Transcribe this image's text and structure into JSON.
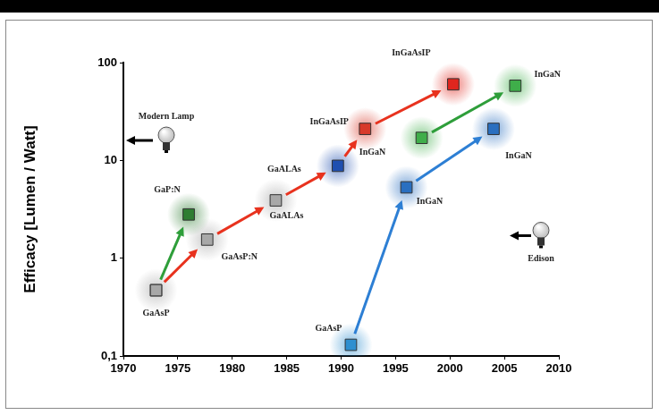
{
  "chart_data": {
    "type": "scatter",
    "ylabel": "Efficacy [Lumen / Watt]",
    "log": "y",
    "grid": false,
    "xlim": [
      1970,
      2010
    ],
    "xticks": [
      1970,
      1975,
      1980,
      1985,
      1990,
      1995,
      2000,
      2005,
      2010
    ],
    "ylim": [
      0.1,
      100
    ],
    "yticks": [
      {
        "value": 0.1,
        "label": "0,1"
      },
      1,
      10,
      100
    ],
    "series": [
      {
        "color": "#e8321e",
        "marker": "square",
        "line_style": "arrow",
        "x": [
          1973,
          1977.7,
          1984,
          1989.7,
          1992.2,
          2000.3
        ],
        "values": [
          0.47,
          1.55,
          3.9,
          8.8,
          21,
          60
        ],
        "labels": [
          "GaAsP",
          "GaAsP:N",
          "GaALAs",
          "GaALAs",
          "InGaAsIP",
          "InGaAsIP"
        ],
        "colors": [
          "#a8a8a8",
          "#a8a8a8",
          "#a8a8a8",
          "#1f4fb0",
          "#d83a2a",
          "#e0261e"
        ]
      },
      {
        "color": "#2e9e3a",
        "marker": "square",
        "line_style": "arrow",
        "x": [
          1973,
          1976
        ],
        "values": [
          0.47,
          2.8
        ],
        "labels": [
          null,
          "GaP:N"
        ],
        "colors": [
          "#a8a8a8",
          "#2e7d32"
        ]
      },
      {
        "color": "#2e9e3a",
        "marker": "square",
        "line_style": "arrow",
        "x": [
          1997.4,
          2006
        ],
        "values": [
          17,
          58
        ],
        "labels": [
          "InGaN",
          "InGaN"
        ],
        "colors": [
          "#3fae4a",
          "#3fae4a"
        ]
      },
      {
        "color": "#2d7fd4",
        "marker": "square",
        "line_style": "arrow",
        "x": [
          1990.9,
          1996,
          2004
        ],
        "values": [
          0.13,
          5.3,
          21
        ],
        "labels": [
          "GaAsP",
          "InGaN",
          "InGaN"
        ],
        "colors": [
          "#2e8fd0",
          "#2a6fc0",
          "#2a6fc0"
        ]
      }
    ],
    "references": [
      {
        "label": "Modern Lamp",
        "value": 16
      },
      {
        "label": "Edison",
        "value": 1.7
      }
    ]
  }
}
